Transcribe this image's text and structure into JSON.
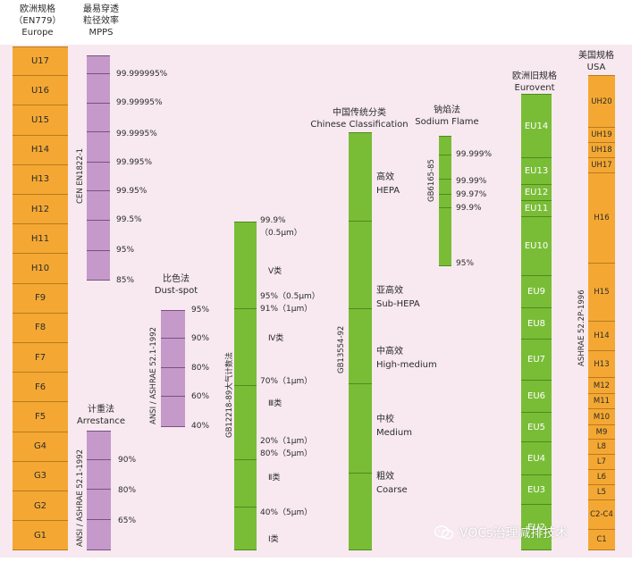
{
  "headers": {
    "en779": [
      "欧洲规格",
      "（EN779）",
      "Europe"
    ],
    "mpps": [
      "最易穿透",
      "粒径效率",
      "MPPS"
    ],
    "dust_spot": [
      "比色法",
      "Dust-spot"
    ],
    "arrestance": [
      "计重法",
      "Arrestance"
    ],
    "chinese": [
      "中国传统分类",
      "Chinese Classification"
    ],
    "sodium": [
      "钠焰法",
      "Sodium Flame"
    ],
    "eurovent": [
      "欧洲旧规格",
      "Eurovent"
    ],
    "usa": [
      "美国规格",
      "USA"
    ]
  },
  "europe_classes": [
    "U17",
    "U16",
    "U15",
    "H14",
    "H13",
    "H12",
    "H11",
    "H10",
    "F9",
    "F8",
    "F7",
    "F6",
    "F5",
    "G4",
    "G3",
    "G2",
    "G1"
  ],
  "mpps": {
    "standard": "CEN EN1822-1",
    "values": [
      "99.999995%",
      "99.99995%",
      "99.9995%",
      "99.995%",
      "99.95%",
      "99.5%",
      "95%",
      "85%"
    ]
  },
  "dust_spot": {
    "standard": "ANSI / ASHRAE 52.1-1992",
    "values": [
      "95%",
      "90%",
      "80%",
      "60%",
      "40%"
    ]
  },
  "arrestance": {
    "standard": "ANSI / ASHRAE 52.1-1992",
    "values": [
      "90%",
      "80%",
      "65%"
    ]
  },
  "gb12218": {
    "standard": "GB12218-89大气计数法",
    "marks": [
      "99.9%",
      "（0.5μm）",
      "Ⅴ类",
      "95%（0.5μm）",
      "91%（1μm）",
      "Ⅳ类",
      "70%（1μm）",
      "Ⅲ类",
      "20%（1μm）",
      "80%（5μm）",
      "Ⅱ类",
      "40%（5μm）",
      "Ⅰ类"
    ]
  },
  "chinese": {
    "standard": "GB13554-92",
    "classes": [
      {
        "cn": "高效",
        "en": "HEPA"
      },
      {
        "cn": "亚高效",
        "en": "Sub-HEPA"
      },
      {
        "cn": "中高效",
        "en": "High-medium"
      },
      {
        "cn": "中校",
        "en": "Medium"
      },
      {
        "cn": "粗效",
        "en": "Coarse"
      }
    ]
  },
  "sodium": {
    "standard": "GB6165-85",
    "values": [
      "99.999%",
      "99.99%",
      "99.97%",
      "99.9%",
      "95%"
    ]
  },
  "eurovent_classes": [
    "EU14",
    "EU13",
    "EU12",
    "EU11",
    "EU10",
    "EU9",
    "EU8",
    "EU7",
    "EU6",
    "EU5",
    "EU4",
    "EU3",
    "EU2"
  ],
  "usa": {
    "standard": "ASHRAE 52.2P-1996",
    "classes": [
      "UH20",
      "UH19",
      "UH18",
      "UH17",
      "H16",
      "H15",
      "H14",
      "H13",
      "M12",
      "M11",
      "M10",
      "M9",
      "L8",
      "L7",
      "L6",
      "L5",
      "C2-C4",
      "C1"
    ]
  },
  "watermark": "VOCs治理减排技术",
  "colors": {
    "orange": "#f4a833",
    "purple": "#c59acb",
    "green": "#79bd37",
    "background": "#f7e9ef"
  }
}
